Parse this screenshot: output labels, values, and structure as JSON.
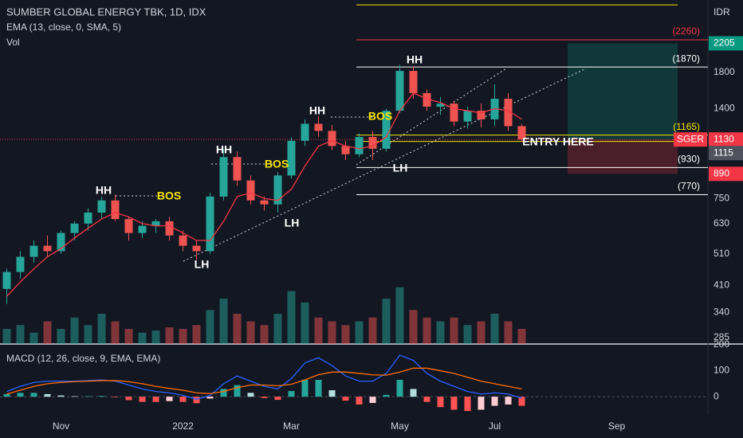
{
  "header": {
    "title": "SUMBER GLOBAL ENERGY TBK, 1D, IDX",
    "vol_label": "Vol",
    "currency": "IDR"
  },
  "chart_data": [
    {
      "type": "candlestick",
      "categories": [
        null,
        null,
        null,
        null,
        "Nov",
        null,
        null,
        null,
        null,
        null,
        null,
        null,
        null,
        "2022",
        null,
        null,
        null,
        null,
        null,
        null,
        null,
        "Mar",
        null,
        null,
        null,
        null,
        null,
        null,
        null,
        "May",
        null,
        null,
        null,
        null,
        null,
        null,
        "Jul",
        null,
        null,
        null,
        null,
        null,
        null,
        null,
        null,
        "Sep",
        null,
        null,
        null,
        null,
        null,
        null
      ],
      "open": [
        400,
        450,
        500,
        540,
        520,
        590,
        630,
        680,
        740,
        650,
        590,
        620,
        640,
        580,
        540,
        520,
        760,
        1000,
        850,
        740,
        720,
        880,
        1120,
        1260,
        1200,
        1080,
        1020,
        1150,
        1060,
        1380,
        1820,
        1560,
        1420,
        1450,
        1280,
        1380,
        1300,
        1500,
        1240,
        null,
        null,
        null,
        null,
        null,
        null,
        null,
        null,
        null,
        null,
        null,
        null,
        null
      ],
      "high": [
        460,
        520,
        560,
        580,
        600,
        640,
        700,
        760,
        770,
        660,
        640,
        650,
        660,
        600,
        560,
        780,
        1060,
        1040,
        880,
        760,
        900,
        1150,
        1300,
        1330,
        1250,
        1120,
        1180,
        1200,
        1400,
        1900,
        1880,
        1600,
        1520,
        1480,
        1420,
        1450,
        1660,
        1560,
        1260,
        null,
        null,
        null,
        null,
        null,
        null,
        null,
        null,
        null,
        null,
        null,
        null,
        null
      ],
      "low": [
        360,
        430,
        480,
        500,
        510,
        560,
        600,
        650,
        640,
        560,
        570,
        590,
        560,
        520,
        490,
        510,
        740,
        820,
        720,
        690,
        680,
        860,
        1080,
        1150,
        1050,
        980,
        1000,
        980,
        1040,
        1360,
        1500,
        1380,
        1340,
        1240,
        1220,
        1230,
        1240,
        1200,
        1110,
        null,
        null,
        null,
        null,
        null,
        null,
        null,
        null,
        null,
        null,
        null,
        null,
        null
      ],
      "close": [
        450,
        500,
        540,
        520,
        590,
        630,
        680,
        740,
        650,
        590,
        620,
        640,
        580,
        540,
        520,
        760,
        1000,
        850,
        740,
        720,
        880,
        1120,
        1260,
        1200,
        1080,
        1020,
        1150,
        1060,
        1380,
        1820,
        1560,
        1420,
        1450,
        1280,
        1380,
        1300,
        1500,
        1240,
        1130,
        null,
        null,
        null,
        null,
        null,
        null,
        null,
        null,
        null,
        null,
        null,
        null,
        null
      ],
      "up_color": "#26a69a",
      "down_color": "#ef5350",
      "ema": {
        "name": "EMA (13, close, 0, SMA, 5)",
        "color": "#f23645",
        "values": [
          380,
          420,
          460,
          500,
          530,
          570,
          610,
          650,
          680,
          660,
          630,
          620,
          620,
          590,
          560,
          560,
          640,
          760,
          780,
          750,
          740,
          800,
          940,
          1080,
          1120,
          1080,
          1060,
          1080,
          1150,
          1380,
          1560,
          1500,
          1460,
          1400,
          1380,
          1360,
          1400,
          1380,
          1300,
          null,
          null,
          null,
          null,
          null,
          null,
          null,
          null,
          null,
          null,
          null,
          null,
          null
        ]
      },
      "volume": {
        "values": [
          20,
          25,
          15,
          30,
          20,
          35,
          25,
          40,
          30,
          20,
          15,
          18,
          22,
          20,
          25,
          45,
          60,
          40,
          30,
          25,
          40,
          70,
          55,
          35,
          30,
          25,
          30,
          35,
          60,
          75,
          45,
          35,
          30,
          35,
          25,
          30,
          40,
          30,
          20,
          null,
          null,
          null,
          null,
          null,
          null,
          null,
          null,
          null,
          null,
          null,
          null,
          null
        ],
        "vlim": [
          0,
          100
        ]
      },
      "ylim": [
        272.7,
        2980
      ],
      "log_scale": true,
      "yticks": [
        285,
        340,
        410,
        510,
        630,
        750,
        1400,
        1800
      ],
      "levels": [
        {
          "value": 2880,
          "color": "#f7e600"
        },
        {
          "value": 2260,
          "label": "(2260)",
          "color": "#f23645"
        },
        {
          "value": 1870,
          "label": "(1870)",
          "color": "#ffffff"
        },
        {
          "value": 1165,
          "label": "(1165)",
          "color": "#f7e600"
        },
        {
          "value": 1115,
          "color": "#f7e600"
        },
        {
          "value": 930,
          "label": "(930)",
          "color": "#ffffff"
        },
        {
          "value": 770,
          "label": "(770)",
          "color": "#ffffff"
        }
      ],
      "position": {
        "target": 2205,
        "entry": 1130,
        "stop": 890
      },
      "price_tags": [
        {
          "value": 2205,
          "color": "#089981"
        },
        {
          "value": 1130,
          "symbol": "SGER",
          "color": "#f23645"
        },
        {
          "value": 1115,
          "color": "#50535e"
        },
        {
          "value": 890,
          "color": "#f23645"
        }
      ],
      "annotations": [
        {
          "text": "HH",
          "color": "#ffffff"
        },
        {
          "text": "BOS",
          "color": "#f7e600"
        },
        {
          "text": "HH",
          "color": "#ffffff"
        },
        {
          "text": "BOS",
          "color": "#f7e600"
        },
        {
          "text": "LH",
          "color": "#ffffff"
        },
        {
          "text": "LH",
          "color": "#ffffff"
        },
        {
          "text": "HH",
          "color": "#ffffff"
        },
        {
          "text": "BOS",
          "color": "#f7e600"
        },
        {
          "text": "LH",
          "color": "#ffffff"
        },
        {
          "text": "HH",
          "color": "#ffffff"
        },
        {
          "text": "ENTRY HERE",
          "color": "#ffffff"
        }
      ]
    },
    {
      "type": "macd",
      "title": "MACD (12, 26, close, 9, EMA, EMA)",
      "series": [
        {
          "color": "#2962ff",
          "values": [
            20,
            40,
            55,
            60,
            60,
            60,
            62,
            65,
            60,
            45,
            30,
            20,
            15,
            5,
            -10,
            5,
            50,
            80,
            60,
            40,
            30,
            70,
            130,
            150,
            120,
            80,
            60,
            60,
            90,
            160,
            140,
            90,
            60,
            40,
            20,
            10,
            15,
            10,
            -5,
            null,
            null,
            null,
            null,
            null,
            null,
            null,
            null,
            null,
            null,
            null,
            null,
            null
          ]
        },
        {
          "color": "#ff6d00",
          "values": [
            10,
            25,
            40,
            50,
            55,
            58,
            60,
            62,
            62,
            58,
            50,
            40,
            32,
            25,
            15,
            12,
            20,
            35,
            45,
            45,
            42,
            48,
            65,
            85,
            95,
            95,
            90,
            84,
            83,
            95,
            110,
            110,
            100,
            90,
            75,
            60,
            50,
            40,
            30,
            null,
            null,
            null,
            null,
            null,
            null,
            null,
            null,
            null,
            null,
            null,
            null,
            null
          ]
        }
      ],
      "histogram": [
        10,
        15,
        15,
        10,
        5,
        2,
        2,
        3,
        -2,
        -13,
        -20,
        -20,
        -17,
        -20,
        -25,
        -7,
        30,
        45,
        15,
        -5,
        -12,
        22,
        65,
        65,
        25,
        -15,
        -30,
        -24,
        7,
        65,
        30,
        -20,
        -40,
        -50,
        -55,
        -50,
        -35,
        -30,
        -35,
        null,
        null,
        null,
        null,
        null,
        null,
        null,
        null,
        null,
        null,
        null,
        null,
        null
      ],
      "ylim": [
        -67,
        203
      ],
      "yticks": [
        0,
        100,
        200
      ]
    }
  ]
}
